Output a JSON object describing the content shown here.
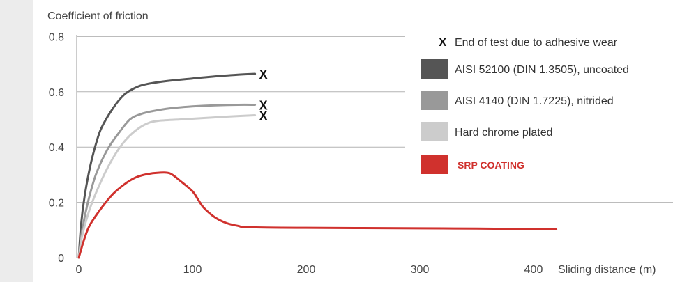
{
  "colors": {
    "background": "#ececec",
    "panel": "#ffffff",
    "grid": "#b3b3b3",
    "axis_text": "#444444",
    "end_marker": "#111111"
  },
  "chart_data": {
    "type": "line",
    "ylabel": "Coefficient of friction",
    "xlabel": "Sliding distance (m)",
    "xlim": [
      0,
      430
    ],
    "ylim": [
      0,
      0.8
    ],
    "x_ticks": [
      0,
      100,
      200,
      300,
      400
    ],
    "y_ticks": [
      0,
      0.2,
      0.4,
      0.6,
      0.8
    ],
    "x_tick_labels": [
      "0",
      "100",
      "200",
      "300",
      "400"
    ],
    "y_tick_labels": [
      "0",
      "0.2",
      "0.4",
      "0.6",
      "0.8"
    ],
    "grid": "horizontal",
    "legend_position": "right",
    "end_marker": {
      "symbol": "X",
      "label": "End of test due to adhesive wear"
    },
    "series": [
      {
        "name": "AISI 52100 (DIN 1.3505), uncoated",
        "color": "#555555",
        "ends_with_marker": true,
        "points": [
          [
            0,
            0
          ],
          [
            2,
            0.12
          ],
          [
            5,
            0.22
          ],
          [
            10,
            0.33
          ],
          [
            15,
            0.41
          ],
          [
            20,
            0.47
          ],
          [
            30,
            0.54
          ],
          [
            40,
            0.59
          ],
          [
            50,
            0.615
          ],
          [
            60,
            0.628
          ],
          [
            80,
            0.64
          ],
          [
            100,
            0.648
          ],
          [
            120,
            0.656
          ],
          [
            140,
            0.662
          ],
          [
            155,
            0.665
          ]
        ]
      },
      {
        "name": "AISI 4140 (DIN 1.7225), nitrided",
        "color": "#999999",
        "ends_with_marker": true,
        "points": [
          [
            0,
            0
          ],
          [
            3,
            0.1
          ],
          [
            8,
            0.2
          ],
          [
            15,
            0.3
          ],
          [
            25,
            0.39
          ],
          [
            35,
            0.45
          ],
          [
            45,
            0.5
          ],
          [
            55,
            0.52
          ],
          [
            65,
            0.53
          ],
          [
            80,
            0.54
          ],
          [
            100,
            0.547
          ],
          [
            120,
            0.551
          ],
          [
            140,
            0.553
          ],
          [
            155,
            0.553
          ]
        ]
      },
      {
        "name": "Hard chrome plated",
        "color": "#cccccc",
        "ends_with_marker": true,
        "points": [
          [
            0,
            0
          ],
          [
            3,
            0.08
          ],
          [
            10,
            0.18
          ],
          [
            20,
            0.28
          ],
          [
            30,
            0.36
          ],
          [
            40,
            0.42
          ],
          [
            50,
            0.46
          ],
          [
            60,
            0.485
          ],
          [
            70,
            0.495
          ],
          [
            90,
            0.5
          ],
          [
            110,
            0.505
          ],
          [
            130,
            0.51
          ],
          [
            155,
            0.515
          ]
        ]
      },
      {
        "name": "SRP COATING",
        "color": "#d0312d",
        "legend_text_color": "#d0312d",
        "ends_with_marker": false,
        "points": [
          [
            0,
            0
          ],
          [
            5,
            0.07
          ],
          [
            10,
            0.12
          ],
          [
            20,
            0.18
          ],
          [
            30,
            0.23
          ],
          [
            40,
            0.265
          ],
          [
            50,
            0.29
          ],
          [
            60,
            0.302
          ],
          [
            70,
            0.307
          ],
          [
            80,
            0.305
          ],
          [
            90,
            0.275
          ],
          [
            100,
            0.24
          ],
          [
            105,
            0.21
          ],
          [
            110,
            0.18
          ],
          [
            120,
            0.145
          ],
          [
            130,
            0.125
          ],
          [
            140,
            0.115
          ],
          [
            150,
            0.11
          ],
          [
            200,
            0.108
          ],
          [
            300,
            0.106
          ],
          [
            350,
            0.105
          ],
          [
            420,
            0.102
          ]
        ]
      }
    ]
  }
}
